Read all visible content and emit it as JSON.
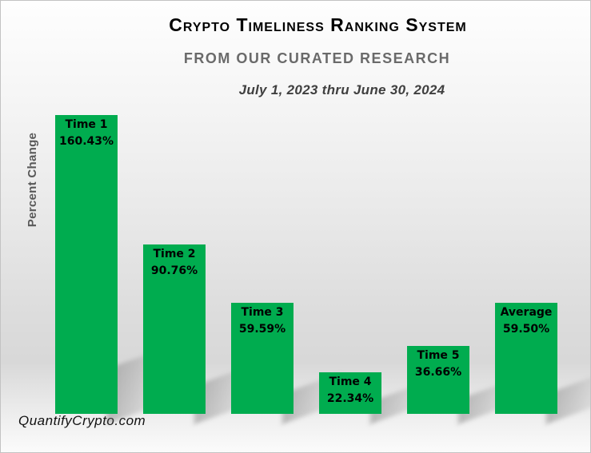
{
  "header": {
    "title": "Crypto Timeliness Ranking System",
    "subtitle": "FROM OUR CURATED RESEARCH",
    "date_range": "July 1, 2023 thru June 30, 2024"
  },
  "footer": {
    "website": "QuantifyCrypto.com"
  },
  "colors": {
    "bar": "#00AC4F",
    "title": "#000000",
    "subtitle": "#6A6A6A",
    "date_range": "#3F3F3F",
    "y_label": "#595959",
    "bar_label": "#000000",
    "shadow": "#8A8A8A"
  },
  "chart_data": {
    "type": "bar",
    "title": "Crypto Timeliness Ranking System",
    "subtitle": "FROM OUR CURATED RESEARCH",
    "annotation": "July 1, 2023 thru June 30, 2024",
    "categories": [
      "Time 1",
      "Time 2",
      "Time 3",
      "Time 4",
      "Time 5",
      "Average"
    ],
    "values": [
      160.43,
      90.76,
      59.59,
      22.34,
      36.66,
      59.5
    ],
    "value_labels": [
      "160.43%",
      "90.76%",
      "59.59%",
      "22.34%",
      "36.66%",
      "59.50%"
    ],
    "xlabel": "",
    "ylabel": "Percent Change",
    "ylim": [
      0,
      165
    ],
    "grid": false,
    "legend": "none",
    "bar_color": "#00AC4F",
    "data_label_position": "inside-top"
  }
}
